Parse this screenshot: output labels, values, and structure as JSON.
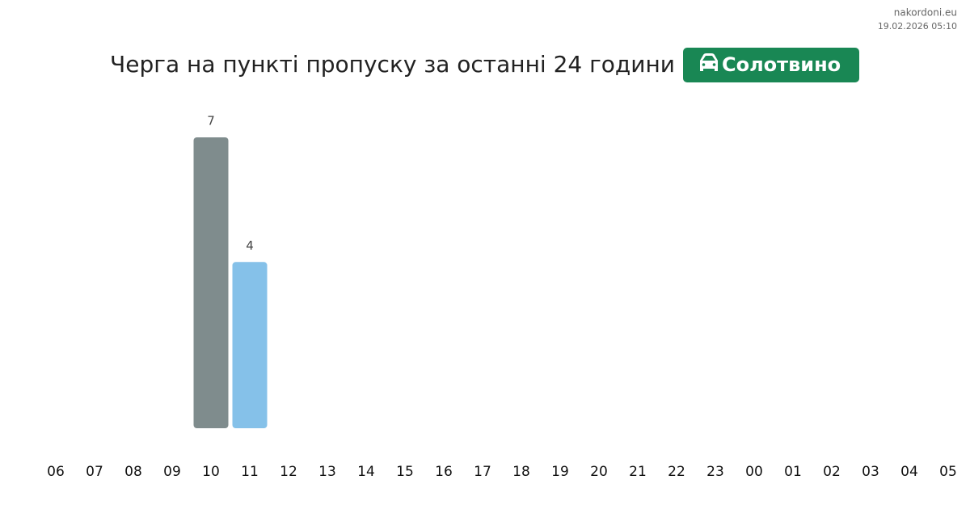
{
  "chart_data": {
    "type": "bar",
    "title": "Черга на пункті пропуску за останні 24 години",
    "badge": "Солотвино",
    "site": "nakordoni.eu",
    "timestamp": "19.02.2026 05:10",
    "categories": [
      "06",
      "07",
      "08",
      "09",
      "10",
      "11",
      "12",
      "13",
      "14",
      "15",
      "16",
      "17",
      "18",
      "19",
      "20",
      "21",
      "22",
      "23",
      "00",
      "01",
      "02",
      "03",
      "04",
      "05"
    ],
    "values": [
      null,
      null,
      null,
      null,
      7,
      4,
      null,
      null,
      null,
      null,
      null,
      null,
      null,
      null,
      null,
      null,
      null,
      null,
      null,
      null,
      null,
      null,
      null,
      null
    ],
    "colors": [
      null,
      null,
      null,
      null,
      "#7f8c8d",
      "#85c1e9",
      null,
      null,
      null,
      null,
      null,
      null,
      null,
      null,
      null,
      null,
      null,
      null,
      null,
      null,
      null,
      null,
      null,
      null
    ]
  }
}
